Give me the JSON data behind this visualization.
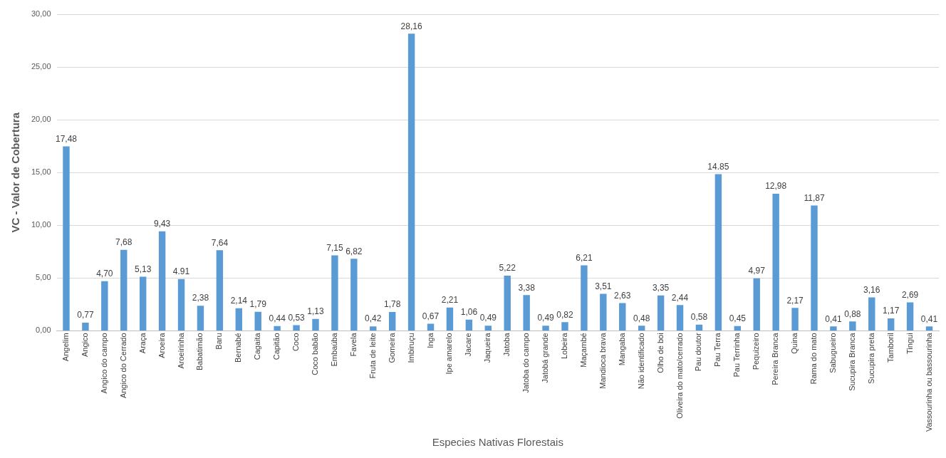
{
  "chart_data": {
    "type": "bar",
    "xlabel": "Especies Nativas Florestais",
    "ylabel": "VC - Valor de Cobertura",
    "categories": [
      "Angelim",
      "Angico",
      "Angico do campo",
      "Angico do Cerrado",
      "Araça",
      "Aroeira",
      "Aroeirinha",
      "Babatimão",
      "Baru",
      "Bernabé",
      "Cagaita",
      "Capitão",
      "Coco",
      "Coco babão",
      "Embaúba",
      "Favela",
      "Fruta de leite",
      "Gomeira",
      "Imbiruçu",
      "Inga",
      "Ipe amarelo",
      "Jacare",
      "Jaqueira",
      "Jatoba",
      "Jatoba do campo",
      "Jatobá grande",
      "Lobeira",
      "Maçambé",
      "Mandioca brava",
      "Mangaba",
      "Não identificado",
      "Olho de boi",
      "Oliveira do mato/cerrado",
      "Pau doutor",
      "Pau Terra",
      "Pau Terrinha",
      "Pequizeiro",
      "Pereira Branca",
      "Quina",
      "Rama do mato",
      "Sabugueiro",
      "Sucupira Branca",
      "Sucupira preta",
      "Tamboril",
      "Tingui",
      "Vassourinha ou bassourinha"
    ],
    "values": [
      17.48,
      0.77,
      4.7,
      7.68,
      5.13,
      9.43,
      4.91,
      2.38,
      7.64,
      2.14,
      1.79,
      0.44,
      0.53,
      1.13,
      7.15,
      6.82,
      0.42,
      1.78,
      28.16,
      0.67,
      2.21,
      1.06,
      0.49,
      5.22,
      3.38,
      0.49,
      0.82,
      6.21,
      3.51,
      2.63,
      0.48,
      3.35,
      2.44,
      0.58,
      14.85,
      0.45,
      4.97,
      12.98,
      2.17,
      11.87,
      0.41,
      0.88,
      3.16,
      1.17,
      2.69,
      0.41
    ],
    "value_labels": [
      "17,48",
      "0,77",
      "4,70",
      "7,68",
      "5,13",
      "9,43",
      "4.91",
      "2,38",
      "7,64",
      "2,14",
      "1,79",
      "0,44",
      "0,53",
      "1,13",
      "7,15",
      "6,82",
      "0,42",
      "1,78",
      "28,16",
      "0,67",
      "2,21",
      "1,06",
      "0,49",
      "5,22",
      "3,38",
      "0,49",
      "0,82",
      "6,21",
      "3,51",
      "2,63",
      "0,48",
      "3,35",
      "2,44",
      "0,58",
      "14.85",
      "0,45",
      "4,97",
      "12,98",
      "2,17",
      "11,87",
      "0,41",
      "0,88",
      "3,16",
      "1,17",
      "2,69",
      "0,41"
    ],
    "color": "#5b9bd5",
    "ylim": [
      0,
      30
    ],
    "yticks": [
      {
        "value": 0,
        "label": "0,00"
      },
      {
        "value": 5,
        "label": "5,00"
      },
      {
        "value": 10,
        "label": "10,00"
      },
      {
        "value": 15,
        "label": "15,00"
      },
      {
        "value": 20,
        "label": "20,00"
      },
      {
        "value": 25,
        "label": "25,00"
      },
      {
        "value": 30,
        "label": "30,00"
      }
    ],
    "grid": "y"
  }
}
